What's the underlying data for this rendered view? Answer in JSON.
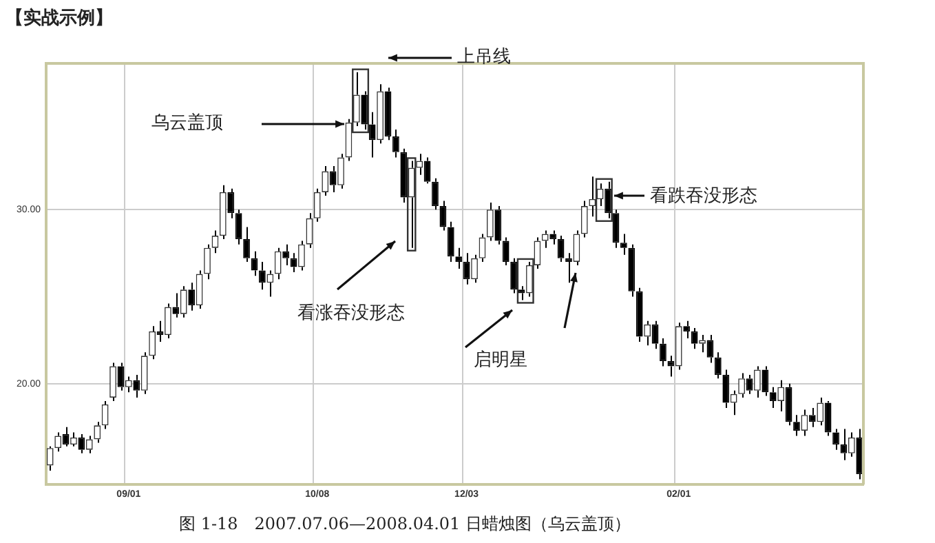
{
  "chart_data": {
    "type": "candlestick",
    "title": "【实战示例】",
    "categories": [
      null,
      null,
      null,
      null,
      null,
      null,
      null,
      null,
      null,
      null,
      "09/01",
      null,
      null,
      null,
      null,
      null,
      null,
      null,
      null,
      null,
      null,
      null,
      null,
      null,
      null,
      null,
      null,
      null,
      null,
      null,
      null,
      null,
      null,
      null,
      "10/08",
      null,
      null,
      null,
      null,
      null,
      null,
      null,
      null,
      null,
      null,
      null,
      null,
      null,
      null,
      null,
      null,
      null,
      null,
      "12/03",
      null,
      null,
      null,
      null,
      null,
      null,
      null,
      null,
      null,
      null,
      null,
      null,
      null,
      null,
      null,
      null,
      null,
      null,
      null,
      null,
      null,
      null,
      null,
      null,
      null,
      null,
      "02/01",
      null,
      null,
      null,
      null,
      null,
      null,
      null,
      null,
      null,
      null,
      null,
      null,
      null,
      null,
      null,
      null,
      null,
      null,
      null,
      null,
      null,
      null,
      null
    ],
    "ohlc": [
      [
        15.3,
        16.4,
        15.0,
        16.3
      ],
      [
        16.3,
        17.2,
        16.1,
        17.0
      ],
      [
        17.1,
        17.5,
        16.4,
        16.5
      ],
      [
        16.5,
        17.2,
        16.4,
        16.9
      ],
      [
        16.9,
        17.1,
        16.0,
        16.2
      ],
      [
        16.2,
        17.0,
        16.0,
        16.8
      ],
      [
        16.8,
        17.8,
        16.6,
        17.6
      ],
      [
        17.6,
        19.0,
        17.4,
        18.8
      ],
      [
        19.2,
        21.2,
        19.0,
        21.0
      ],
      [
        21.0,
        21.2,
        19.6,
        19.8
      ],
      [
        19.8,
        20.4,
        19.5,
        20.2
      ],
      [
        20.2,
        20.5,
        19.2,
        19.6
      ],
      [
        19.6,
        21.8,
        19.4,
        21.6
      ],
      [
        21.6,
        23.3,
        21.4,
        23.0
      ],
      [
        23.0,
        23.6,
        22.4,
        22.8
      ],
      [
        22.8,
        24.6,
        22.6,
        24.4
      ],
      [
        24.4,
        25.2,
        23.8,
        24.0
      ],
      [
        24.0,
        25.6,
        23.8,
        25.4
      ],
      [
        25.4,
        25.8,
        24.2,
        24.5
      ],
      [
        24.5,
        26.5,
        24.3,
        26.3
      ],
      [
        26.3,
        28.0,
        26.0,
        27.8
      ],
      [
        27.8,
        28.8,
        27.5,
        28.5
      ],
      [
        28.5,
        31.4,
        28.3,
        31.0
      ],
      [
        31.0,
        31.2,
        29.5,
        29.8
      ],
      [
        29.8,
        30.0,
        28.0,
        28.3
      ],
      [
        28.3,
        29.0,
        27.0,
        27.2
      ],
      [
        27.2,
        27.6,
        26.2,
        26.5
      ],
      [
        26.5,
        27.0,
        25.4,
        25.8
      ],
      [
        25.8,
        26.5,
        25.0,
        26.3
      ],
      [
        26.3,
        27.8,
        26.0,
        27.6
      ],
      [
        27.6,
        28.0,
        26.8,
        27.2
      ],
      [
        27.2,
        27.5,
        26.4,
        26.7
      ],
      [
        26.7,
        28.2,
        26.5,
        28.0
      ],
      [
        28.0,
        29.8,
        27.8,
        29.5
      ],
      [
        29.5,
        31.2,
        29.3,
        31.0
      ],
      [
        31.0,
        32.5,
        30.8,
        32.2
      ],
      [
        32.2,
        32.5,
        31.0,
        31.4
      ],
      [
        31.4,
        33.2,
        31.2,
        33.0
      ],
      [
        33.0,
        35.2,
        32.8,
        35.0
      ],
      [
        35.0,
        37.9,
        34.8,
        36.6
      ],
      [
        36.6,
        36.8,
        34.6,
        34.9
      ],
      [
        34.9,
        35.6,
        33.0,
        34.0
      ],
      [
        34.0,
        37.2,
        33.8,
        36.8
      ],
      [
        36.8,
        37.0,
        34.0,
        34.2
      ],
      [
        34.2,
        34.6,
        33.0,
        33.3
      ],
      [
        33.3,
        33.5,
        30.4,
        30.7
      ],
      [
        30.7,
        32.8,
        27.8,
        32.4
      ],
      [
        32.4,
        33.2,
        32.0,
        32.8
      ],
      [
        32.8,
        33.0,
        31.5,
        31.6
      ],
      [
        31.6,
        31.8,
        30.0,
        30.2
      ],
      [
        30.2,
        30.5,
        28.8,
        29.0
      ],
      [
        29.0,
        29.3,
        27.0,
        27.3
      ],
      [
        27.3,
        27.8,
        26.6,
        27.0
      ],
      [
        27.0,
        27.5,
        25.7,
        26.0
      ],
      [
        26.0,
        27.4,
        25.8,
        27.2
      ],
      [
        27.2,
        28.6,
        27.0,
        28.4
      ],
      [
        28.4,
        30.4,
        28.2,
        30.0
      ],
      [
        30.0,
        30.2,
        28.0,
        28.2
      ],
      [
        28.2,
        28.4,
        26.8,
        27.0
      ],
      [
        27.0,
        27.2,
        25.2,
        25.4
      ],
      [
        25.4,
        25.6,
        24.8,
        25.2
      ],
      [
        25.2,
        27.0,
        25.0,
        26.8
      ],
      [
        26.8,
        28.4,
        26.6,
        28.2
      ],
      [
        28.2,
        28.8,
        27.8,
        28.6
      ],
      [
        28.6,
        28.8,
        28.0,
        28.3
      ],
      [
        28.3,
        28.5,
        27.0,
        27.2
      ],
      [
        27.2,
        27.5,
        25.8,
        27.0
      ],
      [
        27.0,
        28.8,
        26.8,
        28.6
      ],
      [
        28.6,
        30.5,
        28.4,
        30.2
      ],
      [
        30.2,
        31.9,
        29.6,
        30.6
      ],
      [
        30.6,
        31.5,
        30.2,
        31.2
      ],
      [
        31.2,
        31.6,
        29.5,
        29.8
      ],
      [
        29.8,
        30.0,
        27.8,
        28.1
      ],
      [
        28.1,
        28.6,
        27.4,
        27.8
      ],
      [
        27.8,
        28.0,
        25.0,
        25.3
      ],
      [
        25.3,
        25.5,
        22.4,
        22.7
      ],
      [
        22.7,
        23.6,
        22.2,
        23.4
      ],
      [
        23.4,
        23.6,
        22.0,
        22.3
      ],
      [
        22.3,
        22.6,
        21.0,
        21.3
      ],
      [
        21.3,
        21.6,
        20.4,
        21.0
      ],
      [
        21.0,
        23.5,
        20.8,
        23.3
      ],
      [
        23.3,
        23.6,
        22.6,
        23.0
      ],
      [
        23.0,
        23.2,
        22.0,
        22.3
      ],
      [
        22.3,
        22.8,
        21.8,
        22.5
      ],
      [
        22.5,
        22.8,
        21.2,
        21.5
      ],
      [
        21.5,
        21.8,
        20.3,
        20.5
      ],
      [
        20.5,
        20.8,
        18.6,
        18.9
      ],
      [
        18.9,
        19.6,
        18.2,
        19.4
      ],
      [
        19.4,
        20.6,
        19.2,
        20.3
      ],
      [
        20.3,
        20.5,
        19.4,
        19.6
      ],
      [
        19.6,
        21.0,
        19.2,
        20.8
      ],
      [
        20.8,
        21.0,
        19.3,
        19.5
      ],
      [
        19.5,
        19.8,
        18.6,
        19.0
      ],
      [
        19.0,
        20.2,
        18.4,
        19.8
      ],
      [
        19.8,
        20.0,
        17.6,
        17.8
      ],
      [
        17.8,
        18.2,
        17.0,
        17.3
      ],
      [
        17.3,
        18.5,
        17.0,
        18.2
      ],
      [
        18.2,
        18.6,
        17.5,
        17.8
      ],
      [
        17.8,
        19.2,
        17.6,
        18.9
      ],
      [
        18.9,
        19.0,
        17.0,
        17.2
      ],
      [
        17.2,
        17.4,
        16.2,
        16.5
      ],
      [
        16.5,
        17.4,
        15.6,
        16.0
      ],
      [
        16.0,
        17.2,
        15.8,
        16.9
      ],
      [
        16.9,
        17.4,
        14.5,
        14.8
      ]
    ],
    "ylim": [
      14.2,
      38.4
    ],
    "yticks": [
      {
        "value": 20,
        "label": "20.00"
      },
      {
        "value": 30,
        "label": "30.00"
      }
    ],
    "grid": true,
    "annotations": [
      "乌云盖顶",
      "上吊线",
      "看涨吞没形态",
      "启明星",
      "看跌吞没形态",
      "图 1-18　2007.07.06—2008.04.01 日蜡烛图（乌云盖顶）"
    ]
  }
}
